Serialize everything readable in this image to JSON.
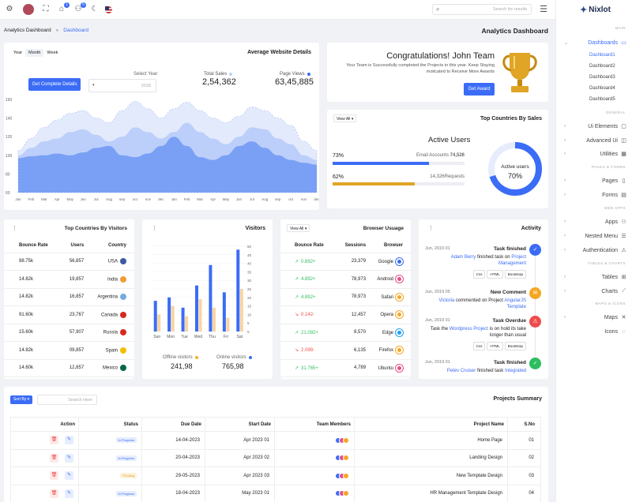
{
  "topbar": {
    "search_placeholder": "Search for results"
  },
  "sidebar": {
    "brand": "Nixlot",
    "sections": {
      "main": "MAIN",
      "general": "GENERAL",
      "pages": "PAGES & FORMS",
      "webapps": "WEB APPS",
      "tables": "TABLES & CHARTS",
      "maps": "MAPS & ICONS"
    },
    "dashboards": "Dashboards",
    "subs": [
      "Dashboard1",
      "Dashboard2",
      "Dashboard3",
      "Dashboard4",
      "Dashboard5"
    ],
    "ui_elements": "Ui Elements",
    "advanced_ui": "Advanced Ui",
    "utilities": "Utilities",
    "pages": "Pages",
    "forms": "Forms",
    "apps": "Apps",
    "nested_menu": "Nested Menu",
    "authentication": "Authentication",
    "tables": "Tables",
    "charts": "Charts",
    "maps": "Maps",
    "icons": "Icons"
  },
  "breadcrumb": {
    "root": "Analytics Dashboard",
    "sep": "«",
    "current": "Dashboard"
  },
  "page_title": "Analytics Dashboard",
  "avg": {
    "title": "Average Website Details",
    "tabs": [
      "Year",
      "Month",
      "Week"
    ],
    "button": "Get Complete Details",
    "select_label": "Select Year",
    "select_value": "2018",
    "total_sales_label": "Total Sales",
    "total_sales": "2,54,362",
    "page_views_label": "Page Views",
    "page_views": "63,45,885"
  },
  "chart_data": {
    "type": "area",
    "x": [
      "Jan",
      "Feb",
      "Mar",
      "Apr",
      "May",
      "Jun",
      "Jul",
      "Aug",
      "sep",
      "oct",
      "nov",
      "dec",
      "Jan",
      "Feb",
      "Mar",
      "Apr",
      "May",
      "Jun",
      "Jul",
      "Aug",
      "sep",
      "oct",
      "nov",
      "dec"
    ],
    "yticks": [
      60,
      80,
      100,
      120,
      140,
      160
    ],
    "ylim": [
      60,
      160
    ],
    "series": [
      {
        "values": [
          105,
          118,
          130,
          138,
          145,
          148,
          140,
          135,
          148,
          158,
          150,
          140,
          150,
          157,
          148,
          140,
          135,
          142,
          152,
          148,
          140,
          132,
          115,
          105
        ]
      },
      {
        "values": [
          100,
          108,
          115,
          118,
          125,
          128,
          122,
          115,
          120,
          130,
          125,
          118,
          125,
          135,
          125,
          118,
          112,
          120,
          130,
          128,
          118,
          112,
          100,
          95
        ]
      },
      {
        "values": [
          97,
          99,
          100,
          102,
          100,
          103,
          108,
          110,
          100,
          98,
          102,
          110,
          120,
          110,
          98,
          95,
          100,
          110,
          115,
          108,
          100,
          95,
          92,
          90
        ]
      }
    ],
    "colors": [
      "#e3eafc",
      "#bccffa",
      "#7aa0f6"
    ]
  },
  "congrats": {
    "title": "Congratulations! John Team",
    "line1": "Your Team is Successfully completed the Projects in this year. Keep Staying",
    "line2": "moticated to Receive More Awards",
    "button": "Get Award"
  },
  "top_sales": {
    "title": "Top Countries By Sales",
    "view_all": "View All",
    "active_users": "Active Users",
    "pct1": "73%",
    "lbl1": "Email Accounts",
    "val1": "74,526",
    "fill1": 0.73,
    "pct2": "62%",
    "val2": "14,326",
    "lbl2": "Requests",
    "fill2": 0.62,
    "donut_label": "Active users",
    "donut_value": "70%",
    "donut_fraction": 0.7
  },
  "visitors_table": {
    "title": "Top Countries By Visitors",
    "headers": [
      "Bounce Rate",
      "Users",
      "Country"
    ],
    "rows": [
      {
        "bounce": "98.75k",
        "users": "56,857",
        "country": "USA",
        "flag": "#3c5aa6"
      },
      {
        "bounce": "14.82k",
        "users": "19,857",
        "country": "India",
        "flag": "#f29b38"
      },
      {
        "bounce": "14.82k",
        "users": "16,857",
        "country": "Argentina",
        "flag": "#74acdf"
      },
      {
        "bounce": "91.60k",
        "users": "23,767",
        "country": "Canada",
        "flag": "#d52b1e"
      },
      {
        "bounce": "15.60k",
        "users": "57,907",
        "country": "Russia",
        "flag": "#d52b1e"
      },
      {
        "bounce": "14.82k",
        "users": "09,857",
        "country": "Spain",
        "flag": "#f1bf00"
      },
      {
        "bounce": "14.60k",
        "users": "12,857",
        "country": "Mexico",
        "flag": "#006847"
      }
    ]
  },
  "visitors_chart": {
    "title": "Visitors",
    "days": [
      "Sun",
      "Mon",
      "Tue",
      "Wed",
      "Thu",
      "Fri",
      "Sat"
    ],
    "yticks": [
      0,
      5,
      10,
      15,
      20,
      25,
      30,
      35,
      40,
      45,
      50
    ],
    "offline": [
      18,
      20,
      14,
      27,
      39,
      23,
      48
    ],
    "online": [
      10,
      15,
      9,
      19,
      14,
      8,
      25
    ],
    "offline_label": "Offline visitors",
    "offline_value": "241,98",
    "online_label": "Online visitors",
    "online_value": "765,98"
  },
  "browser": {
    "title": "Browser Usuage",
    "view_all": "View All",
    "headers": [
      "Bounce Rate",
      "Sessions",
      "Browser"
    ],
    "rows": [
      {
        "rate": "0.892+",
        "up": true,
        "sessions": "23,379",
        "browser": "Google",
        "color": "#3b6cf6"
      },
      {
        "rate": "4.892+",
        "up": true,
        "sessions": "78,973",
        "browser": "Android",
        "color": "#e84d8a"
      },
      {
        "rate": "4.892+",
        "up": true,
        "sessions": "78,973",
        "browser": "Safari",
        "color": "#f5a623"
      },
      {
        "rate": "0.142-",
        "up": false,
        "sessions": "12,457",
        "browser": "Opera",
        "color": "#f5a623"
      },
      {
        "rate": "21.092+",
        "up": true,
        "sessions": "8,570",
        "browser": "Edge",
        "color": "#1da1f2"
      },
      {
        "rate": "2.098-",
        "up": false,
        "sessions": "6,135",
        "browser": "Firefox",
        "color": "#f5a623"
      },
      {
        "rate": "31.765+",
        "up": true,
        "sessions": "4,789",
        "browser": "Ubuntu",
        "color": "#e84d8a"
      }
    ]
  },
  "activity": {
    "title": "Activity",
    "items": [
      {
        "date": "Jun, 2019 01",
        "title": "Task finished",
        "who": "Adam Berry",
        "mid": " finished task on ",
        "link": "Project",
        "link2": "Management",
        "tags": [
          "Css",
          "HTML",
          "Bootstrap"
        ],
        "color": "#3b6cf6"
      },
      {
        "date": "Jun, 2019 05",
        "title": "New Comment",
        "who": "Victoria",
        "mid": " commented on Project ",
        "link": "AngularJS",
        "link2": "Template",
        "tags": [],
        "color": "#f5a623"
      },
      {
        "date": "Jun, 2019 01",
        "title": "Task Overdue",
        "pre": "Task the ",
        "link": "Wordpress Project",
        "post": " is on hold its take",
        "post2": "longer than usual",
        "tags": [
          "Css",
          "HTML",
          "Bootstrap"
        ],
        "color": "#ef4b4b"
      },
      {
        "date": "Jun, 2019 01",
        "title": "Task finished",
        "who": "Petev Cruiser",
        "mid": " finished task ",
        "link": "Integrated",
        "tags": [],
        "color": "#2dbe60"
      }
    ]
  },
  "projects": {
    "title": "Projects Summary",
    "sort_by": "Sort By",
    "search_placeholder": "Search Here",
    "headers": [
      "Action",
      "Status",
      "Due Date",
      "Start Date",
      "Team Members",
      "Project Name",
      "S.No"
    ],
    "rows": [
      {
        "status": "In Progress",
        "due": "14-04-2023",
        "start": "Apr 2023 01",
        "name": "Home Page",
        "no": "01"
      },
      {
        "status": "In Progress",
        "due": "20-04-2023",
        "start": "Apr 2023 02",
        "name": "Landing Design",
        "no": "02"
      },
      {
        "status": "Pending",
        "due": "29-05-2023",
        "start": "Apr 2023 03",
        "name": "New Template Design",
        "no": "03"
      },
      {
        "status": "In Progress",
        "due": "18-04-2023",
        "start": "May 2023 01",
        "name": "HR Management Template Design",
        "no": "04"
      }
    ]
  }
}
